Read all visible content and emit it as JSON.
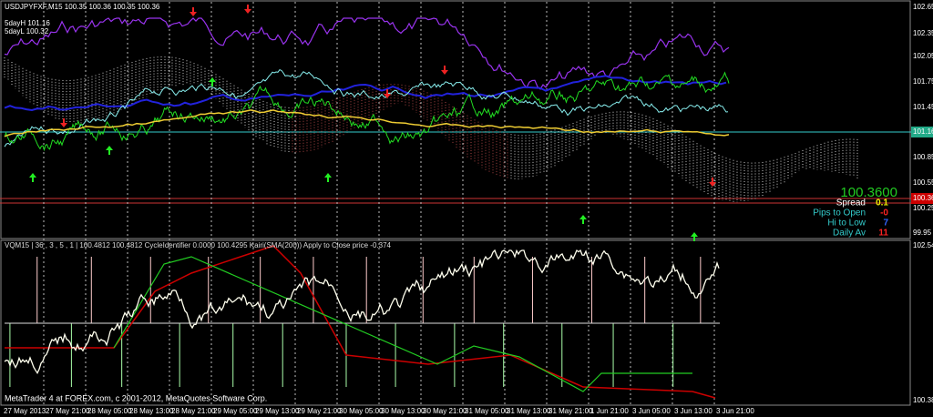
{
  "header": {
    "symbol_line": "USDJPYFXF,M15  100.35 100.36 100.35 100.36",
    "day_high": "5dayH 101.16",
    "day_low": "5dayL 100.32"
  },
  "price_axis": {
    "ticks": [
      "102.65",
      "102.35",
      "102.05",
      "101.75",
      "101.45",
      "101.16",
      "100.85",
      "100.55",
      "100.25",
      "99.95"
    ],
    "current": "100.36"
  },
  "info_panel": {
    "price": "100.3600",
    "rows": [
      {
        "label": "Spread",
        "value": "0.1"
      },
      {
        "label": "Pips to Open",
        "value": "-0"
      },
      {
        "label": "Hi to Low",
        "value": "7"
      },
      {
        "label": "Daily Av",
        "value": "11"
      }
    ]
  },
  "indicator": {
    "header": "VQM15 | 36 , 3 , 5 , 1 | 100.4812 100.4812  CycleIdentifier 0.0000 100.4295  Kairi(SMA(200)) Apply to Close price -0.374",
    "axis_top": "102.549",
    "axis_bottom": "100.382"
  },
  "time_axis": {
    "labels": [
      "27 May 2013",
      "27 May 21:00",
      "28 May 05:00",
      "28 May 13:00",
      "28 May 21:00",
      "29 May 05:00",
      "29 May 13:00",
      "29 May 21:00",
      "30 May 05:00",
      "30 May 13:00",
      "30 May 21:00",
      "31 May 05:00",
      "31 May 13:00",
      "31 May 21:00",
      "1 Jun 21:00",
      "3 Jun 05:00",
      "3 Jun 13:00",
      "3 Jun 21:00"
    ]
  },
  "footer": "MetaTrader 4 at FOREX.com, c 2001-2012, MetaQuotes Software Corp."
}
